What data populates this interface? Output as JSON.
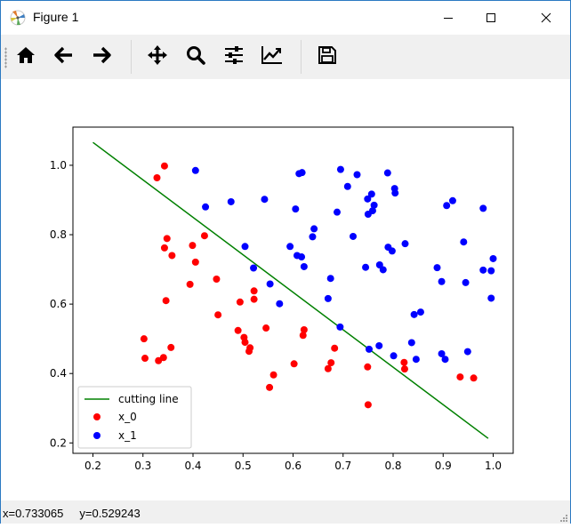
{
  "window": {
    "title": "Figure 1",
    "app_icon": "matplotlib-icon",
    "controls": [
      "minimize-icon",
      "maximize-icon",
      "close-icon"
    ]
  },
  "toolbar": {
    "buttons": [
      {
        "name": "home",
        "icon": "home-icon"
      },
      {
        "name": "back",
        "icon": "arrow-left-icon"
      },
      {
        "name": "forward",
        "icon": "arrow-right-icon"
      },
      {
        "name": "pan",
        "icon": "move-icon"
      },
      {
        "name": "zoom",
        "icon": "magnifier-icon"
      },
      {
        "name": "configure-subplots",
        "icon": "sliders-icon"
      },
      {
        "name": "edit-axis",
        "icon": "line-chart-icon"
      },
      {
        "name": "save",
        "icon": "floppy-disk-icon"
      }
    ]
  },
  "status": {
    "coords": "x=0.733065     y=0.529243"
  },
  "chart_data": {
    "type": "scatter",
    "title": "",
    "xlabel": "",
    "ylabel": "",
    "xlim": [
      0.16,
      1.04
    ],
    "ylim": [
      0.17,
      1.11
    ],
    "xticks": [
      "0.2",
      "0.3",
      "0.4",
      "0.5",
      "0.6",
      "0.7",
      "0.8",
      "0.9",
      "1.0"
    ],
    "yticks": [
      "0.2",
      "0.4",
      "0.6",
      "0.8",
      "1.0"
    ],
    "grid": false,
    "legend_position": "lower-left",
    "legend": [
      "cutting line",
      "x_0",
      "x_1"
    ],
    "line": {
      "name": "cutting line",
      "color": "#008000",
      "x": [
        0.2,
        0.99
      ],
      "y": [
        1.066,
        0.213
      ]
    },
    "series": [
      {
        "name": "x_0",
        "color": "#ff0000",
        "points": [
          [
            0.343,
            0.998
          ],
          [
            0.328,
            0.964
          ],
          [
            0.348,
            0.789
          ],
          [
            0.343,
            0.762
          ],
          [
            0.358,
            0.74
          ],
          [
            0.399,
            0.769
          ],
          [
            0.405,
            0.721
          ],
          [
            0.423,
            0.797
          ],
          [
            0.394,
            0.657
          ],
          [
            0.447,
            0.672
          ],
          [
            0.346,
            0.61
          ],
          [
            0.302,
            0.5
          ],
          [
            0.356,
            0.475
          ],
          [
            0.304,
            0.444
          ],
          [
            0.331,
            0.437
          ],
          [
            0.341,
            0.446
          ],
          [
            0.45,
            0.569
          ],
          [
            0.494,
            0.606
          ],
          [
            0.522,
            0.638
          ],
          [
            0.522,
            0.614
          ],
          [
            0.49,
            0.524
          ],
          [
            0.502,
            0.504
          ],
          [
            0.504,
            0.49
          ],
          [
            0.514,
            0.474
          ],
          [
            0.512,
            0.464
          ],
          [
            0.546,
            0.531
          ],
          [
            0.622,
            0.526
          ],
          [
            0.62,
            0.51
          ],
          [
            0.602,
            0.428
          ],
          [
            0.561,
            0.396
          ],
          [
            0.553,
            0.36
          ],
          [
            0.683,
            0.473
          ],
          [
            0.676,
            0.431
          ],
          [
            0.67,
            0.414
          ],
          [
            0.749,
            0.419
          ],
          [
            0.75,
            0.31
          ],
          [
            0.822,
            0.432
          ],
          [
            0.823,
            0.413
          ],
          [
            0.934,
            0.39
          ],
          [
            0.961,
            0.387
          ]
        ]
      },
      {
        "name": "x_1",
        "color": "#0000ff",
        "points": [
          [
            0.405,
            0.985
          ],
          [
            0.425,
            0.88
          ],
          [
            0.476,
            0.895
          ],
          [
            0.543,
            0.902
          ],
          [
            0.612,
            0.976
          ],
          [
            0.618,
            0.979
          ],
          [
            0.605,
            0.874
          ],
          [
            0.642,
            0.817
          ],
          [
            0.639,
            0.794
          ],
          [
            0.594,
            0.766
          ],
          [
            0.608,
            0.74
          ],
          [
            0.617,
            0.736
          ],
          [
            0.622,
            0.708
          ],
          [
            0.688,
            0.865
          ],
          [
            0.695,
            0.988
          ],
          [
            0.709,
            0.939
          ],
          [
            0.728,
            0.973
          ],
          [
            0.749,
            0.903
          ],
          [
            0.757,
            0.917
          ],
          [
            0.75,
            0.859
          ],
          [
            0.759,
            0.869
          ],
          [
            0.762,
            0.885
          ],
          [
            0.789,
            0.978
          ],
          [
            0.803,
            0.933
          ],
          [
            0.804,
            0.92
          ],
          [
            0.79,
            0.764
          ],
          [
            0.798,
            0.753
          ],
          [
            0.824,
            0.774
          ],
          [
            0.72,
            0.795
          ],
          [
            0.745,
            0.706
          ],
          [
            0.773,
            0.713
          ],
          [
            0.78,
            0.699
          ],
          [
            0.504,
            0.766
          ],
          [
            0.521,
            0.704
          ],
          [
            0.554,
            0.658
          ],
          [
            0.573,
            0.601
          ],
          [
            0.675,
            0.674
          ],
          [
            0.67,
            0.616
          ],
          [
            0.694,
            0.534
          ],
          [
            0.752,
            0.47
          ],
          [
            0.772,
            0.48
          ],
          [
            0.801,
            0.451
          ],
          [
            0.837,
            0.489
          ],
          [
            0.842,
            0.57
          ],
          [
            0.855,
            0.577
          ],
          [
            0.846,
            0.441
          ],
          [
            0.888,
            0.705
          ],
          [
            0.897,
            0.665
          ],
          [
            0.907,
            0.884
          ],
          [
            0.919,
            0.898
          ],
          [
            0.897,
            0.457
          ],
          [
            0.904,
            0.441
          ],
          [
            0.941,
            0.779
          ],
          [
            0.945,
            0.662
          ],
          [
            0.949,
            0.463
          ],
          [
            0.98,
            0.876
          ],
          [
            0.98,
            0.698
          ],
          [
            0.996,
            0.617
          ],
          [
            0.996,
            0.696
          ],
          [
            1.0,
            0.731
          ]
        ]
      }
    ]
  }
}
